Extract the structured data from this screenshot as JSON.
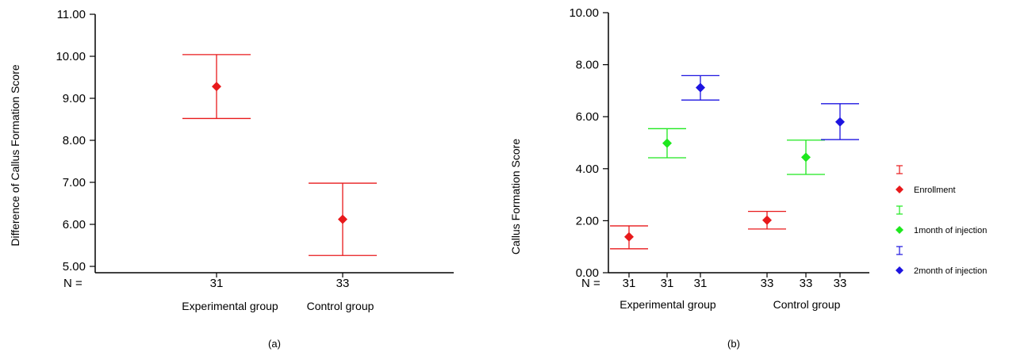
{
  "chart_data": [
    {
      "type": "errorbar",
      "caption": "(a)",
      "ylabel": "Difference of Callus Formation Score",
      "ylim": [
        5.0,
        11.0
      ],
      "yticks": [
        "5.00",
        "6.00",
        "7.00",
        "8.00",
        "9.00",
        "10.00",
        "11.00"
      ],
      "n_label": "N =",
      "categories": [
        "Experimental group",
        "Control group"
      ],
      "n_values": [
        "31",
        "33"
      ],
      "points": [
        {
          "category": "Experimental group",
          "n": "31",
          "mean": 9.28,
          "lower": 8.52,
          "upper": 10.04,
          "color": "#e8191b"
        },
        {
          "category": "Control group",
          "n": "33",
          "mean": 6.12,
          "lower": 5.26,
          "upper": 6.98,
          "color": "#e8191b"
        }
      ]
    },
    {
      "type": "errorbar",
      "caption": "(b)",
      "ylabel": "Callus Formation Score",
      "ylim": [
        0.0,
        10.0
      ],
      "yticks": [
        "0.00",
        "2.00",
        "4.00",
        "6.00",
        "8.00",
        "10.00"
      ],
      "n_label": "N =",
      "categories": [
        "Experimental group",
        "Control group"
      ],
      "series": [
        {
          "name": "Enrollment",
          "color": "#e8191b",
          "points": [
            {
              "category": "Experimental group",
              "n": "31",
              "mean": 1.38,
              "lower": 0.92,
              "upper": 1.8
            },
            {
              "category": "Control group",
              "n": "33",
              "mean": 2.02,
              "lower": 1.68,
              "upper": 2.36
            }
          ]
        },
        {
          "name": "1month of injection",
          "color": "#1ee81e",
          "points": [
            {
              "category": "Experimental group",
              "n": "31",
              "mean": 4.98,
              "lower": 4.42,
              "upper": 5.54
            },
            {
              "category": "Control group",
              "n": "33",
              "mean": 4.44,
              "lower": 3.78,
              "upper": 5.1
            }
          ]
        },
        {
          "name": "2month of injection",
          "color": "#1d14e0",
          "points": [
            {
              "category": "Experimental group",
              "n": "31",
              "mean": 7.12,
              "lower": 6.64,
              "upper": 7.58
            },
            {
              "category": "Control group",
              "n": "33",
              "mean": 5.8,
              "lower": 5.12,
              "upper": 6.5
            }
          ]
        }
      ]
    }
  ]
}
